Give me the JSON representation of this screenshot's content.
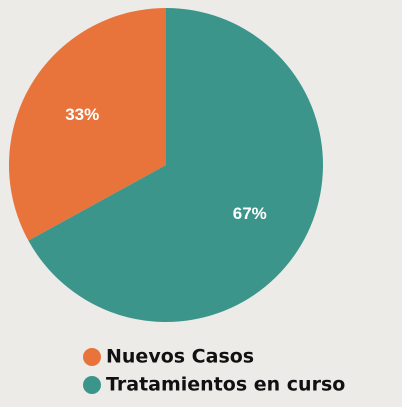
{
  "chart_data": {
    "type": "pie",
    "categories": [
      "Nuevos Casos",
      "Tratamientos en curso"
    ],
    "values": [
      33,
      67
    ],
    "value_labels": [
      "33%",
      "67%"
    ],
    "colors": [
      "#e8743b",
      "#3b958a"
    ],
    "legend": "bottom"
  }
}
